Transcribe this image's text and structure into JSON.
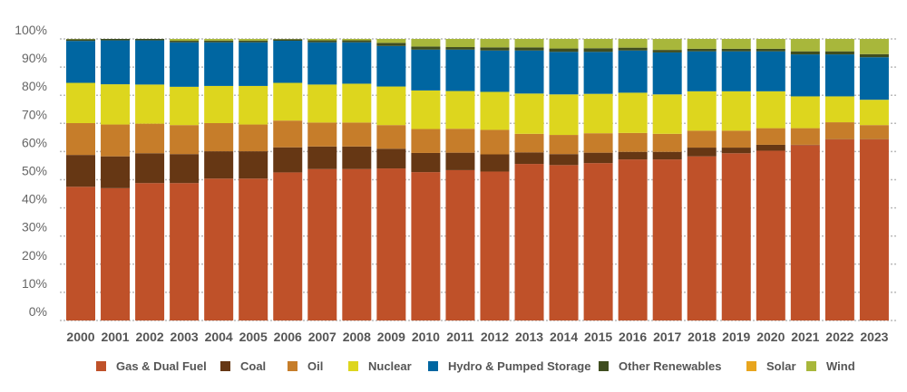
{
  "chart_data": {
    "type": "bar",
    "stacked": true,
    "title": "",
    "xlabel": "",
    "ylabel": "",
    "ylim": [
      0,
      100
    ],
    "y_ticks": [
      "0%",
      "10%",
      "20%",
      "30%",
      "40%",
      "50%",
      "60%",
      "70%",
      "80%",
      "90%",
      "100%"
    ],
    "grid": "horizontal dotted",
    "legend_position": "bottom",
    "categories": [
      "2000",
      "2001",
      "2002",
      "2003",
      "2004",
      "2005",
      "2006",
      "2007",
      "2008",
      "2009",
      "2010",
      "2011",
      "2012",
      "2013",
      "2014",
      "2015",
      "2016",
      "2017",
      "2018",
      "2019",
      "2020",
      "2021",
      "2022",
      "2023"
    ],
    "series": [
      {
        "name": "Gas & Dual Fuel",
        "color": "#bf5129",
        "values": [
          47.5,
          47.0,
          48.8,
          48.8,
          50.4,
          50.4,
          52.6,
          53.8,
          53.8,
          54.0,
          52.7,
          53.4,
          52.9,
          55.6,
          55.2,
          55.9,
          57.2,
          57.2,
          58.3,
          59.4,
          60.3,
          62.3,
          64.3,
          64.3
        ]
      },
      {
        "name": "Coal",
        "color": "#663714",
        "values": [
          11.3,
          11.3,
          10.6,
          10.3,
          9.7,
          9.7,
          8.9,
          8.0,
          8.0,
          7.0,
          6.8,
          6.2,
          6.1,
          4.1,
          3.9,
          3.7,
          2.7,
          2.7,
          3.1,
          2.0,
          2.1,
          0.1,
          0.1,
          0.1
        ]
      },
      {
        "name": "Oil",
        "color": "#c67d2a",
        "values": [
          11.3,
          11.3,
          10.5,
          10.3,
          10.0,
          9.5,
          9.5,
          8.5,
          8.5,
          8.4,
          8.5,
          8.5,
          8.7,
          6.6,
          6.8,
          6.9,
          6.7,
          6.4,
          6.0,
          6.0,
          5.9,
          5.9,
          6.0,
          5.0
        ]
      },
      {
        "name": "Nuclear",
        "color": "#ddd61e",
        "values": [
          14.3,
          14.3,
          13.9,
          13.6,
          13.2,
          13.7,
          13.4,
          13.5,
          13.8,
          13.7,
          13.7,
          13.4,
          13.5,
          14.3,
          14.4,
          14.0,
          14.3,
          14.0,
          14.0,
          14.0,
          13.1,
          11.3,
          9.2,
          9.0
        ]
      },
      {
        "name": "Hydro & Pumped Storage",
        "color": "#0066a1",
        "values": [
          14.9,
          15.6,
          15.7,
          15.8,
          15.5,
          15.5,
          14.95,
          15.0,
          14.7,
          14.4,
          14.5,
          14.7,
          14.7,
          15.3,
          15.1,
          14.9,
          15.0,
          14.9,
          14.2,
          14.2,
          14.2,
          14.9,
          14.9,
          15.1
        ]
      },
      {
        "name": "Other Renewables",
        "color": "#3f4d1f",
        "values": [
          0.6,
          0.5,
          0.5,
          0.55,
          0.6,
          0.6,
          0.55,
          0.7,
          0.7,
          1.1,
          1.1,
          0.9,
          1.1,
          1.1,
          1.2,
          1.3,
          1.0,
          0.9,
          0.9,
          0.9,
          0.9,
          1.1,
          1.1,
          1.1
        ]
      },
      {
        "name": "Solar",
        "color": "#e8a51e",
        "values": [
          0,
          0,
          0,
          0,
          0,
          0,
          0,
          0,
          0,
          0,
          0,
          0,
          0,
          0,
          0,
          0,
          0,
          0,
          0,
          0,
          0,
          0,
          0,
          0
        ]
      },
      {
        "name": "Wind",
        "color": "#a8b73b",
        "values": [
          0.1,
          0,
          0,
          0.65,
          0.6,
          0.6,
          0.1,
          0.5,
          0.5,
          1.4,
          2.7,
          2.9,
          3.0,
          3.0,
          3.4,
          3.3,
          3.1,
          3.9,
          3.5,
          3.5,
          3.5,
          4.4,
          4.4,
          5.4
        ]
      }
    ]
  }
}
